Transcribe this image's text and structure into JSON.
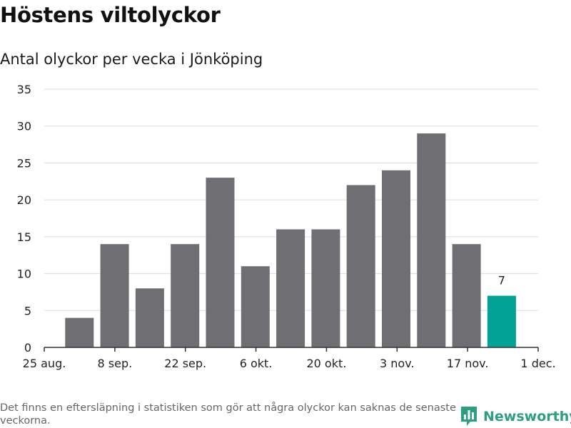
{
  "title": "Höstens viltolyckor",
  "subtitle": "Antal olyckor per vecka i Jönköping",
  "footnote": "Det finns en eftersläpning i statistiken som gör att några olyckor kan saknas de senaste veckorna.",
  "brand": {
    "name": "Newsworthy",
    "icon": "bar-chart-logo-icon",
    "color": "#2e9e82"
  },
  "colors": {
    "bar": "#6f6e73",
    "highlight": "#00a396",
    "grid": "#dcdcdc",
    "axis": "#333333"
  },
  "chart_data": {
    "type": "bar",
    "title": "Höstens viltolyckor",
    "subtitle": "Antal olyckor per vecka i Jönköping",
    "xlabel": "",
    "ylabel": "",
    "x_tick_labels": [
      "25 aug.",
      "8 sep.",
      "22 sep.",
      "6 okt.",
      "20 okt.",
      "3 nov.",
      "17 nov.",
      "1 dec."
    ],
    "y_ticks": [
      0,
      5,
      10,
      15,
      20,
      25,
      30,
      35
    ],
    "ylim": [
      0,
      35
    ],
    "grid": true,
    "values": [
      4,
      14,
      8,
      14,
      23,
      11,
      16,
      16,
      22,
      24,
      29,
      14,
      7
    ],
    "highlight_index": 12,
    "data_labels": [
      {
        "index": 12,
        "text": "7"
      }
    ]
  }
}
